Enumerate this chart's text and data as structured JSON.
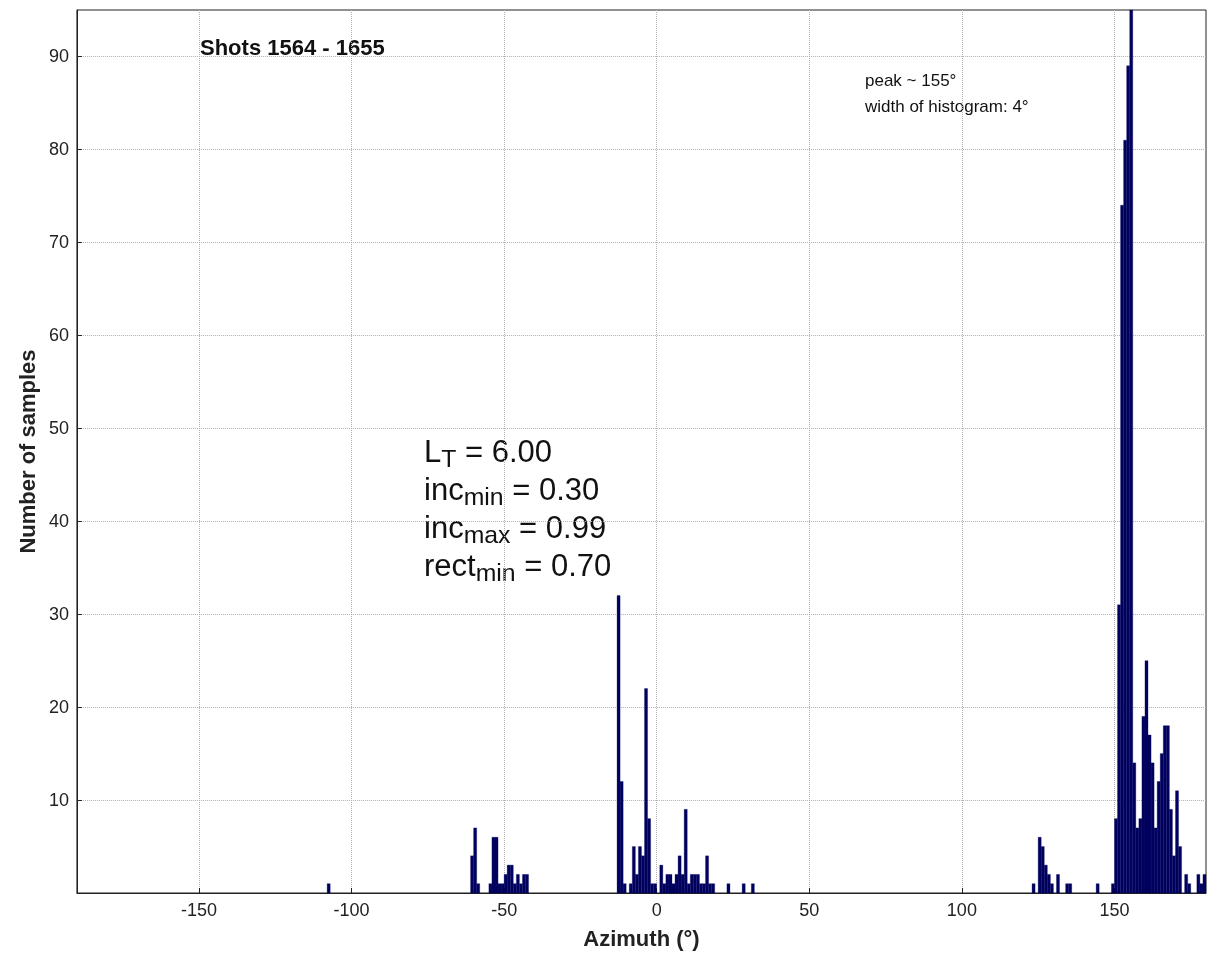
{
  "chart_data": {
    "type": "histogram",
    "xlabel": "Azimuth (°)",
    "ylabel": "Number of samples",
    "annotations": [
      "Shots 1564 - 1655",
      "peak ~ 155°",
      "width of histogram: 4°",
      "L$_{T}$ = 6.00",
      "inc$_{min}$ = 0.30",
      "inc$_{max}$ = 0.99",
      "rect$_{min}$ = 0.70"
    ],
    "color": "#00005e",
    "bins": [
      -110,
      -109,
      -108,
      -107,
      -106,
      -105,
      -104,
      -103,
      -102,
      -101,
      -100,
      -99,
      -98,
      -97,
      -96,
      -95,
      -94,
      -93,
      -92,
      -91,
      -90,
      -89,
      -88,
      -87,
      -86,
      -85,
      -84,
      -83,
      -82,
      -81,
      -80,
      -79,
      -78,
      -77,
      -76,
      -75,
      -74,
      -73,
      -72,
      -71,
      -70,
      -69,
      -68,
      -67,
      -66,
      -65,
      -64,
      -63,
      -62,
      -61,
      -60,
      -59,
      -58,
      -57,
      -56,
      -55,
      -54,
      -53,
      -52,
      -51,
      -50,
      -49,
      -48,
      -47,
      -46,
      -45,
      -44,
      -43,
      -42,
      -41,
      -40,
      -39,
      -38,
      -37,
      -36,
      -35,
      -34,
      -33,
      -32,
      -31,
      -30,
      -29,
      -28,
      -27,
      -26,
      -25,
      -24,
      -23,
      -22,
      -21,
      -20,
      -19,
      -18,
      -17,
      -16,
      -15,
      -14,
      -13,
      -12,
      -11,
      -10,
      -9,
      -8,
      -7,
      -6,
      -5,
      -4,
      -3,
      -2,
      -1,
      0,
      1,
      2,
      3,
      4,
      5,
      6,
      7,
      8,
      9,
      10,
      11,
      12,
      13,
      14,
      15,
      16,
      17,
      18,
      19,
      20,
      21,
      22,
      23,
      24,
      25,
      26,
      27,
      28,
      29,
      30,
      31,
      32,
      33,
      34,
      35,
      36,
      37,
      38,
      39,
      40,
      41,
      42,
      43,
      44,
      45,
      46,
      47,
      48,
      49,
      50,
      51,
      52,
      53,
      54,
      55,
      56,
      57,
      58,
      59,
      60,
      61,
      62,
      63,
      64,
      65,
      66,
      67,
      68,
      69,
      70,
      71,
      72,
      73,
      74,
      75,
      76,
      77,
      78,
      79,
      80,
      81,
      82,
      83,
      84,
      85,
      86,
      87,
      88,
      89,
      90,
      91,
      92,
      93,
      94,
      95,
      96,
      97,
      98,
      99,
      100,
      101,
      102,
      103,
      104,
      105,
      106,
      107,
      108,
      109,
      110,
      111,
      112,
      113,
      114,
      115,
      116,
      117,
      118,
      119,
      120,
      121,
      122,
      123,
      124,
      125,
      126,
      127,
      128,
      129,
      130,
      131,
      132,
      133,
      134,
      135,
      136,
      137,
      138,
      139,
      140,
      141,
      142,
      143,
      144,
      145,
      146,
      147,
      148,
      149,
      150,
      151,
      152,
      153,
      154,
      155,
      156,
      157,
      158,
      159,
      160,
      161,
      162,
      163,
      164,
      165,
      166,
      167,
      168,
      169,
      170,
      171,
      172,
      173,
      174,
      175,
      176,
      177,
      178,
      179,
      180
    ],
    "values": [
      0,
      0,
      1,
      0,
      0,
      0,
      0,
      0,
      0,
      0,
      0,
      0,
      0,
      0,
      0,
      0,
      0,
      0,
      0,
      0,
      0,
      0,
      0,
      0,
      0,
      0,
      0,
      0,
      0,
      0,
      0,
      0,
      0,
      0,
      0,
      0,
      0,
      0,
      0,
      0,
      0,
      0,
      0,
      0,
      0,
      0,
      0,
      0,
      0,
      4,
      7,
      1,
      0,
      0,
      0,
      1,
      6,
      6,
      1,
      1,
      2,
      3,
      3,
      1,
      2,
      1,
      2,
      2,
      0,
      0,
      0,
      0,
      0,
      0,
      0,
      0,
      0,
      0,
      0,
      0,
      0,
      0,
      0,
      0,
      0,
      0,
      0,
      0,
      0,
      0,
      0,
      0,
      0,
      0,
      0,
      0,
      0,
      32,
      12,
      1,
      0,
      1,
      5,
      2,
      5,
      4,
      22,
      8,
      1,
      1,
      0,
      3,
      1,
      2,
      2,
      1,
      2,
      4,
      2,
      9,
      1,
      2,
      2,
      2,
      1,
      1,
      4,
      1,
      1,
      0,
      0,
      0,
      0,
      1,
      0,
      0,
      0,
      0,
      1,
      0,
      0,
      1,
      0,
      0,
      0,
      0,
      0,
      0,
      0,
      0,
      0,
      0,
      0,
      0,
      0,
      0,
      0,
      0,
      0,
      0,
      0,
      0,
      0,
      0,
      0,
      0,
      0,
      0,
      0,
      0,
      0,
      0,
      0,
      0,
      0,
      0,
      0,
      0,
      0,
      0,
      0,
      0,
      0,
      0,
      0,
      0,
      0,
      0,
      0,
      0,
      0,
      0,
      0,
      0,
      0,
      0,
      0,
      0,
      0,
      0,
      0,
      0,
      0,
      0,
      0,
      0,
      0,
      0,
      0,
      0,
      0,
      0,
      0,
      0,
      0,
      0,
      0,
      0,
      0,
      0,
      0,
      0,
      0,
      0,
      0,
      0,
      0,
      0,
      0,
      0,
      0,
      0,
      0,
      1,
      0,
      6,
      5,
      3,
      2,
      1,
      0,
      2,
      0,
      0,
      1,
      1,
      0,
      0,
      0,
      0,
      0,
      0,
      0,
      0,
      1,
      0,
      0,
      0,
      0,
      1,
      8,
      31,
      74,
      81,
      89,
      95,
      14,
      7,
      8,
      19,
      25,
      17,
      14,
      7,
      12,
      15,
      18,
      18,
      9,
      4,
      11,
      5,
      0,
      2,
      1,
      0,
      0,
      2,
      1,
      2
    ],
    "xlim": [
      -190,
      180
    ],
    "ylim": [
      0,
      95
    ],
    "xticks": [
      -150,
      -100,
      -50,
      0,
      50,
      100,
      150
    ],
    "yticks": [
      10,
      20,
      30,
      40,
      50,
      60,
      70,
      80,
      90
    ],
    "grid": true
  }
}
